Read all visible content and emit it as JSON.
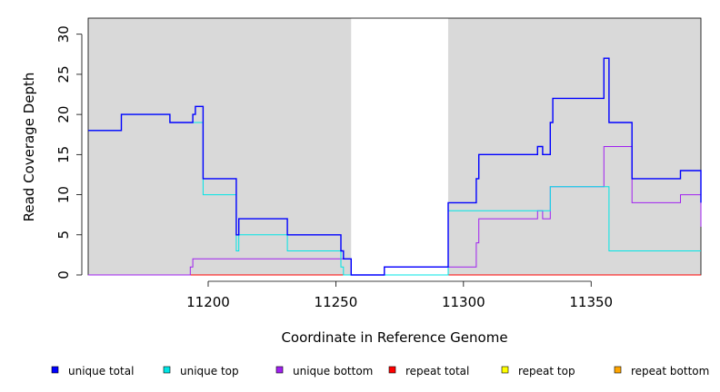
{
  "chart_data": {
    "type": "line",
    "title": "",
    "xlabel": "Coordinate in Reference Genome",
    "ylabel": "Read Coverage Depth",
    "xlim": [
      11153,
      11393
    ],
    "ylim": [
      0,
      32
    ],
    "xticks": [
      11200,
      11250,
      11300,
      11350
    ],
    "yticks": [
      0,
      5,
      10,
      15,
      20,
      25,
      30
    ],
    "grid": false,
    "legend_position": "bottom",
    "shaded_regions": [
      {
        "x_start": 11153,
        "x_end": 11256,
        "color": "#d9d9d9"
      },
      {
        "x_start": 11294,
        "x_end": 11393,
        "color": "#d9d9d9"
      }
    ],
    "series": [
      {
        "name": "unique total",
        "color": "#0000ff",
        "points": [
          [
            11153,
            18
          ],
          [
            11166,
            18
          ],
          [
            11166,
            20
          ],
          [
            11185,
            20
          ],
          [
            11185,
            19
          ],
          [
            11194,
            19
          ],
          [
            11194,
            20
          ],
          [
            11195,
            20
          ],
          [
            11195,
            21
          ],
          [
            11198,
            21
          ],
          [
            11198,
            12
          ],
          [
            11211,
            12
          ],
          [
            11211,
            5
          ],
          [
            11212,
            5
          ],
          [
            11212,
            7
          ],
          [
            11231,
            7
          ],
          [
            11231,
            5
          ],
          [
            11252,
            5
          ],
          [
            11252,
            3
          ],
          [
            11253,
            3
          ],
          [
            11253,
            2
          ],
          [
            11256,
            2
          ],
          [
            11256,
            0
          ],
          [
            11269,
            0
          ],
          [
            11269,
            1
          ],
          [
            11294,
            1
          ],
          [
            11294,
            9
          ],
          [
            11305,
            9
          ],
          [
            11305,
            12
          ],
          [
            11306,
            12
          ],
          [
            11306,
            15
          ],
          [
            11329,
            15
          ],
          [
            11329,
            16
          ],
          [
            11331,
            16
          ],
          [
            11331,
            15
          ],
          [
            11334,
            15
          ],
          [
            11334,
            19
          ],
          [
            11335,
            19
          ],
          [
            11335,
            22
          ],
          [
            11355,
            22
          ],
          [
            11355,
            27
          ],
          [
            11357,
            27
          ],
          [
            11357,
            19
          ],
          [
            11366,
            19
          ],
          [
            11366,
            12
          ],
          [
            11385,
            12
          ],
          [
            11385,
            13
          ],
          [
            11393,
            13
          ],
          [
            11393,
            9
          ]
        ]
      },
      {
        "name": "unique top",
        "color": "#00e5e5",
        "points": [
          [
            11153,
            18
          ],
          [
            11166,
            18
          ],
          [
            11166,
            20
          ],
          [
            11185,
            20
          ],
          [
            11185,
            19
          ],
          [
            11194,
            19
          ],
          [
            11194,
            19
          ],
          [
            11198,
            19
          ],
          [
            11198,
            10
          ],
          [
            11211,
            10
          ],
          [
            11211,
            3
          ],
          [
            11212,
            3
          ],
          [
            11212,
            5
          ],
          [
            11231,
            5
          ],
          [
            11231,
            3
          ],
          [
            11252,
            3
          ],
          [
            11252,
            1
          ],
          [
            11253,
            1
          ],
          [
            11253,
            0
          ],
          [
            11294,
            0
          ],
          [
            11294,
            8
          ],
          [
            11334,
            8
          ],
          [
            11334,
            11
          ],
          [
            11355,
            11
          ],
          [
            11355,
            11
          ],
          [
            11357,
            11
          ],
          [
            11357,
            3
          ],
          [
            11393,
            3
          ]
        ]
      },
      {
        "name": "unique bottom",
        "color": "#a020f0",
        "points": [
          [
            11153,
            0
          ],
          [
            11193,
            0
          ],
          [
            11193,
            1
          ],
          [
            11194,
            1
          ],
          [
            11194,
            2
          ],
          [
            11256,
            2
          ],
          [
            11256,
            0
          ],
          [
            11269,
            0
          ],
          [
            11269,
            1
          ],
          [
            11305,
            1
          ],
          [
            11305,
            4
          ],
          [
            11306,
            4
          ],
          [
            11306,
            7
          ],
          [
            11329,
            7
          ],
          [
            11329,
            8
          ],
          [
            11331,
            8
          ],
          [
            11331,
            7
          ],
          [
            11334,
            7
          ],
          [
            11334,
            11
          ],
          [
            11355,
            11
          ],
          [
            11355,
            16
          ],
          [
            11366,
            16
          ],
          [
            11366,
            9
          ],
          [
            11385,
            9
          ],
          [
            11385,
            10
          ],
          [
            11393,
            10
          ],
          [
            11393,
            6
          ]
        ]
      },
      {
        "name": "repeat total",
        "color": "#ff0000",
        "points": [
          [
            11153,
            0
          ],
          [
            11393,
            0
          ]
        ]
      },
      {
        "name": "repeat top",
        "color": "#ffff00",
        "points": [
          [
            11153,
            0
          ],
          [
            11393,
            0
          ]
        ]
      },
      {
        "name": "repeat bottom",
        "color": "#ffa500",
        "points": [
          [
            11153,
            0
          ],
          [
            11393,
            0
          ]
        ]
      }
    ]
  }
}
